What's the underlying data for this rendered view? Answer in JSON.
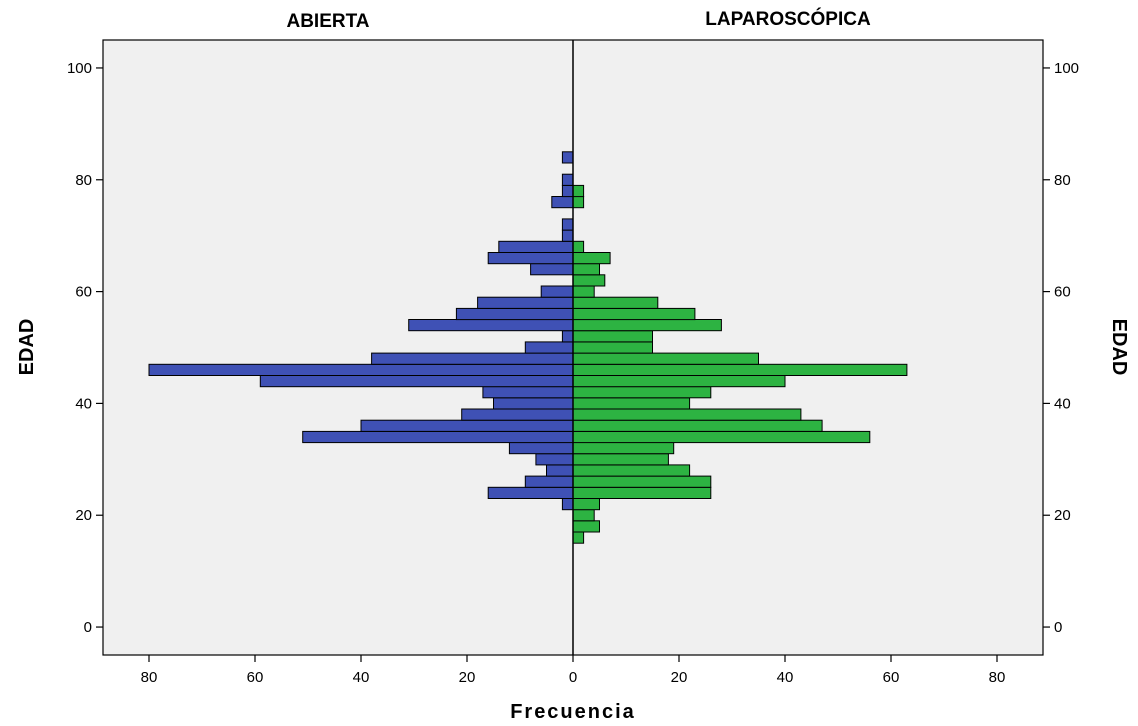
{
  "chart_data": {
    "type": "bar",
    "orientation": "horizontal-population-pyramid",
    "titles": {
      "left": "ABIERTA",
      "right": "LAPAROSCÓPICA"
    },
    "xlabel": "Frecuencia",
    "ylabel_left": "EDAD",
    "ylabel_right": "EDAD",
    "xlim": [
      0,
      80
    ],
    "ylim": [
      -5,
      105
    ],
    "x_ticks": [
      "80",
      "60",
      "40",
      "20",
      "0",
      "20",
      "40",
      "60",
      "80"
    ],
    "y_ticks": [
      "0",
      "20",
      "40",
      "60",
      "80",
      "100"
    ],
    "grid": false,
    "bin_width": 2,
    "series": [
      {
        "name": "ABIERTA",
        "side": "left",
        "color": "#3F51B5",
        "bins": [
          {
            "age": 22,
            "freq": 2
          },
          {
            "age": 24,
            "freq": 16
          },
          {
            "age": 26,
            "freq": 9
          },
          {
            "age": 28,
            "freq": 5
          },
          {
            "age": 30,
            "freq": 7
          },
          {
            "age": 32,
            "freq": 12
          },
          {
            "age": 34,
            "freq": 51
          },
          {
            "age": 36,
            "freq": 40
          },
          {
            "age": 38,
            "freq": 21
          },
          {
            "age": 40,
            "freq": 15
          },
          {
            "age": 42,
            "freq": 17
          },
          {
            "age": 44,
            "freq": 59
          },
          {
            "age": 46,
            "freq": 80
          },
          {
            "age": 48,
            "freq": 38
          },
          {
            "age": 50,
            "freq": 9
          },
          {
            "age": 52,
            "freq": 2
          },
          {
            "age": 54,
            "freq": 31
          },
          {
            "age": 56,
            "freq": 22
          },
          {
            "age": 58,
            "freq": 18
          },
          {
            "age": 60,
            "freq": 6
          },
          {
            "age": 64,
            "freq": 8
          },
          {
            "age": 66,
            "freq": 16
          },
          {
            "age": 68,
            "freq": 14
          },
          {
            "age": 70,
            "freq": 2
          },
          {
            "age": 72,
            "freq": 2
          },
          {
            "age": 76,
            "freq": 4
          },
          {
            "age": 78,
            "freq": 2
          },
          {
            "age": 80,
            "freq": 2
          },
          {
            "age": 84,
            "freq": 2
          }
        ]
      },
      {
        "name": "LAPAROSCÓPICA",
        "side": "right",
        "color": "#2DB342",
        "bins": [
          {
            "age": 16,
            "freq": 2
          },
          {
            "age": 18,
            "freq": 5
          },
          {
            "age": 20,
            "freq": 4
          },
          {
            "age": 22,
            "freq": 5
          },
          {
            "age": 24,
            "freq": 26
          },
          {
            "age": 26,
            "freq": 26
          },
          {
            "age": 28,
            "freq": 22
          },
          {
            "age": 30,
            "freq": 18
          },
          {
            "age": 32,
            "freq": 19
          },
          {
            "age": 34,
            "freq": 56
          },
          {
            "age": 36,
            "freq": 47
          },
          {
            "age": 38,
            "freq": 43
          },
          {
            "age": 40,
            "freq": 22
          },
          {
            "age": 42,
            "freq": 26
          },
          {
            "age": 44,
            "freq": 40
          },
          {
            "age": 46,
            "freq": 63
          },
          {
            "age": 48,
            "freq": 35
          },
          {
            "age": 50,
            "freq": 15
          },
          {
            "age": 52,
            "freq": 15
          },
          {
            "age": 54,
            "freq": 28
          },
          {
            "age": 56,
            "freq": 23
          },
          {
            "age": 58,
            "freq": 16
          },
          {
            "age": 60,
            "freq": 4
          },
          {
            "age": 62,
            "freq": 6
          },
          {
            "age": 64,
            "freq": 5
          },
          {
            "age": 66,
            "freq": 7
          },
          {
            "age": 68,
            "freq": 2
          },
          {
            "age": 76,
            "freq": 2
          },
          {
            "age": 78,
            "freq": 2
          }
        ]
      }
    ]
  }
}
